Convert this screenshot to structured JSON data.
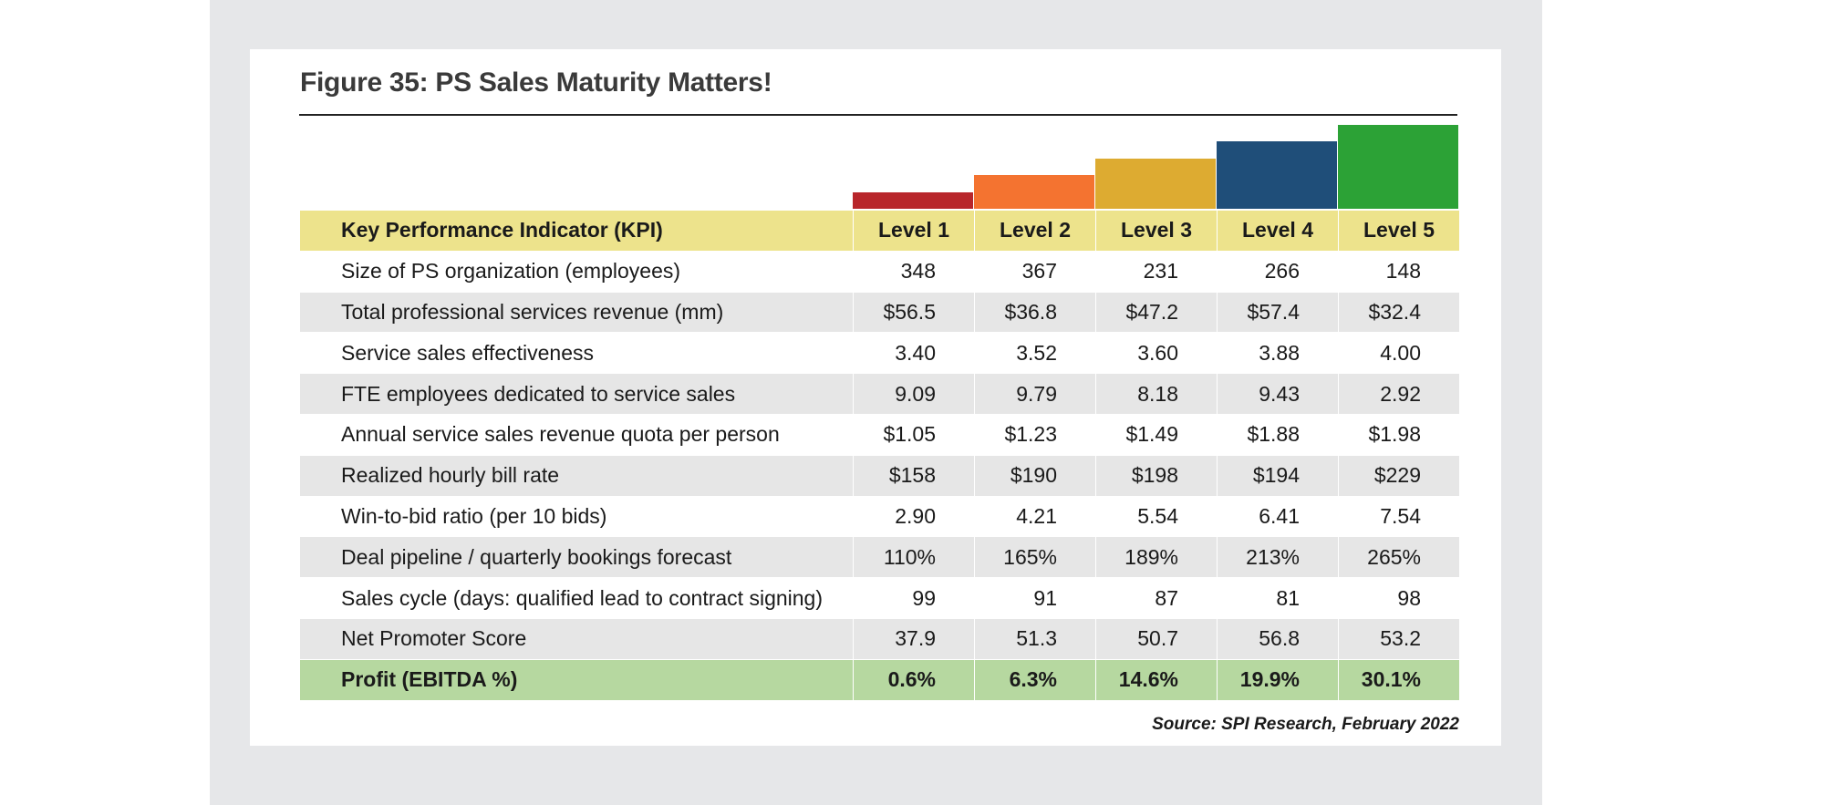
{
  "figure": {
    "title": "Figure 35:  PS Sales Maturity Matters!",
    "source": "Source: SPI Research, February 2022"
  },
  "maturity_steps": [
    {
      "level": "Level 1",
      "color": "#b8262b",
      "height_rank": 1
    },
    {
      "level": "Level 2",
      "color": "#f47330",
      "height_rank": 2
    },
    {
      "level": "Level 3",
      "color": "#ddab31",
      "height_rank": 3
    },
    {
      "level": "Level 4",
      "color": "#1f4e79",
      "height_rank": 4
    },
    {
      "level": "Level 5",
      "color": "#2ca236",
      "height_rank": 5
    }
  ],
  "table": {
    "header": {
      "kpi": "Key Performance Indicator (KPI)",
      "levels": [
        "Level 1",
        "Level 2",
        "Level 3",
        "Level 4",
        "Level 5"
      ]
    },
    "rows": [
      {
        "kpi": "Size of PS organization (employees)",
        "values": [
          "348",
          "367",
          "231",
          "266",
          "148"
        ]
      },
      {
        "kpi": "Total professional services revenue (mm)",
        "values": [
          "$56.5",
          "$36.8",
          "$47.2",
          "$57.4",
          "$32.4"
        ]
      },
      {
        "kpi": "Service sales effectiveness",
        "values": [
          "3.40",
          "3.52",
          "3.60",
          "3.88",
          "4.00"
        ]
      },
      {
        "kpi": "FTE employees dedicated to service sales",
        "values": [
          "9.09",
          "9.79",
          "8.18",
          "9.43",
          "2.92"
        ]
      },
      {
        "kpi": "Annual service sales revenue quota per person",
        "values": [
          "$1.05",
          "$1.23",
          "$1.49",
          "$1.88",
          "$1.98"
        ]
      },
      {
        "kpi": "Realized hourly bill rate",
        "values": [
          "$158",
          "$190",
          "$198",
          "$194",
          "$229"
        ]
      },
      {
        "kpi": "Win-to-bid ratio (per 10 bids)",
        "values": [
          "2.90",
          "4.21",
          "5.54",
          "6.41",
          "7.54"
        ]
      },
      {
        "kpi": "Deal pipeline / quarterly bookings forecast",
        "values": [
          "110%",
          "165%",
          "189%",
          "213%",
          "265%"
        ]
      },
      {
        "kpi": "Sales cycle (days: qualified lead to contract signing)",
        "values": [
          "99",
          "91",
          "87",
          "81",
          "98"
        ]
      },
      {
        "kpi": "Net Promoter Score",
        "values": [
          "37.9",
          "51.3",
          "50.7",
          "56.8",
          "53.2"
        ]
      }
    ],
    "profit_row": {
      "kpi": "Profit (EBITDA %)",
      "values": [
        "0.6%",
        "6.3%",
        "14.6%",
        "19.9%",
        "30.1%"
      ]
    }
  },
  "colors": {
    "header_fill": "#ede38c",
    "alt_row_fill": "#e6e6e6",
    "profit_fill": "#b6d8a0",
    "backdrop": "#e6e7e9"
  }
}
